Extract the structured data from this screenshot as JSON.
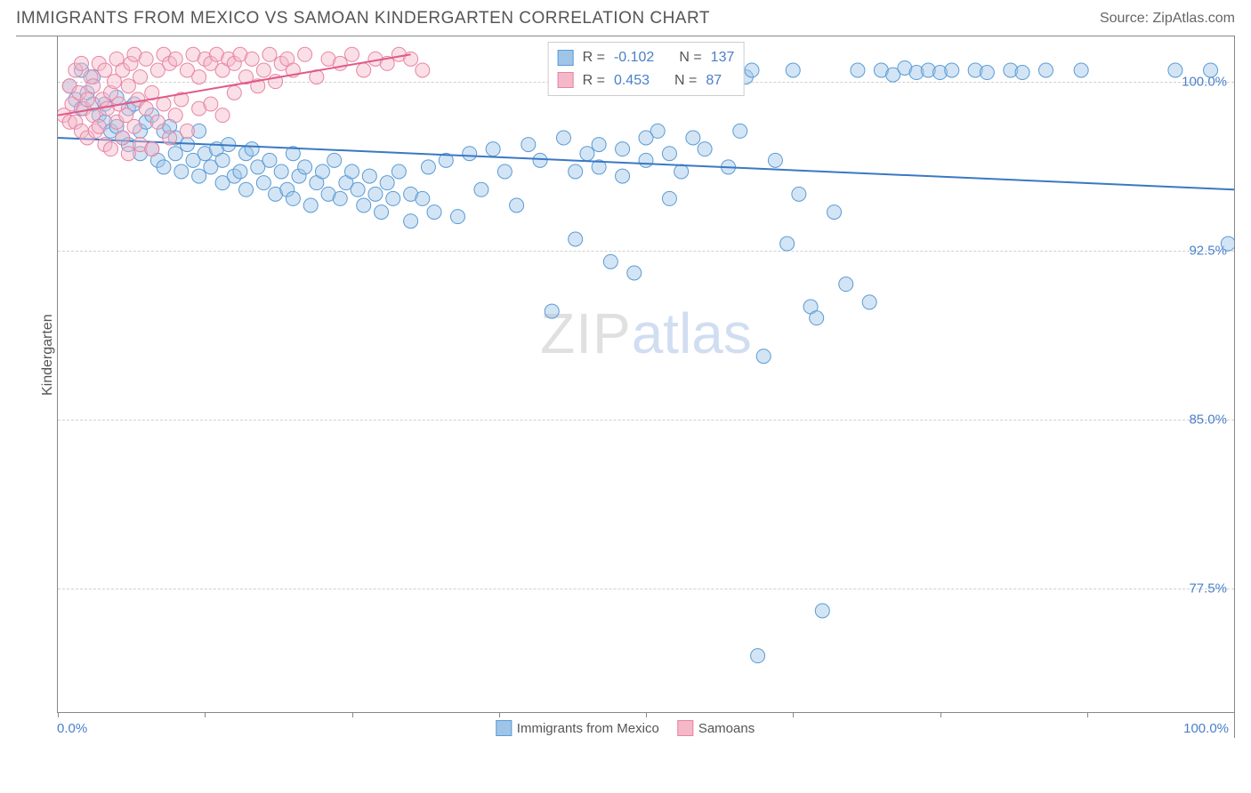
{
  "title": "IMMIGRANTS FROM MEXICO VS SAMOAN KINDERGARTEN CORRELATION CHART",
  "source": "Source: ZipAtlas.com",
  "watermark_zip": "ZIP",
  "watermark_atlas": "atlas",
  "chart": {
    "type": "scatter",
    "y_axis_title": "Kindergarten",
    "x_axis_label_left": "0.0%",
    "x_axis_label_right": "100.0%",
    "xlim": [
      0,
      100
    ],
    "ylim": [
      72,
      102
    ],
    "y_ticks": [
      {
        "value": 100.0,
        "label": "100.0%"
      },
      {
        "value": 92.5,
        "label": "92.5%"
      },
      {
        "value": 85.0,
        "label": "85.0%"
      },
      {
        "value": 77.5,
        "label": "77.5%"
      }
    ],
    "x_tick_positions": [
      0,
      12.5,
      25,
      37.5,
      50,
      62.5,
      75,
      87.5,
      100
    ],
    "grid_color": "#d0d0d0",
    "background_color": "#ffffff",
    "marker_radius": 8,
    "marker_opacity": 0.45,
    "line_width": 2,
    "series": [
      {
        "name": "Immigrants from Mexico",
        "color_fill": "#9ec5e8",
        "color_stroke": "#5b9bd5",
        "trendline_color": "#3b78c4",
        "trendline": {
          "x1": 0,
          "y1": 97.5,
          "x2": 100,
          "y2": 95.2
        },
        "legend_r_label": "R =",
        "legend_r_value": "-0.102",
        "legend_n_label": "N =",
        "legend_n_value": "137",
        "points": [
          [
            1,
            99.8
          ],
          [
            1.5,
            99.2
          ],
          [
            2,
            98.8
          ],
          [
            2,
            100.5
          ],
          [
            2.5,
            99.5
          ],
          [
            3,
            99.0
          ],
          [
            3,
            100.2
          ],
          [
            3.5,
            98.5
          ],
          [
            4,
            99.0
          ],
          [
            4,
            98.2
          ],
          [
            4.5,
            97.8
          ],
          [
            5,
            99.3
          ],
          [
            5,
            98.0
          ],
          [
            5.5,
            97.5
          ],
          [
            6,
            98.8
          ],
          [
            6,
            97.2
          ],
          [
            6.5,
            99.0
          ],
          [
            7,
            97.8
          ],
          [
            7,
            96.8
          ],
          [
            7.5,
            98.2
          ],
          [
            8,
            97.0
          ],
          [
            8,
            98.5
          ],
          [
            8.5,
            96.5
          ],
          [
            9,
            97.8
          ],
          [
            9,
            96.2
          ],
          [
            9.5,
            98.0
          ],
          [
            10,
            96.8
          ],
          [
            10,
            97.5
          ],
          [
            10.5,
            96.0
          ],
          [
            11,
            97.2
          ],
          [
            11.5,
            96.5
          ],
          [
            12,
            97.8
          ],
          [
            12,
            95.8
          ],
          [
            12.5,
            96.8
          ],
          [
            13,
            96.2
          ],
          [
            13.5,
            97.0
          ],
          [
            14,
            95.5
          ],
          [
            14,
            96.5
          ],
          [
            14.5,
            97.2
          ],
          [
            15,
            95.8
          ],
          [
            15.5,
            96.0
          ],
          [
            16,
            96.8
          ],
          [
            16,
            95.2
          ],
          [
            16.5,
            97.0
          ],
          [
            17,
            96.2
          ],
          [
            17.5,
            95.5
          ],
          [
            18,
            96.5
          ],
          [
            18.5,
            95.0
          ],
          [
            19,
            96.0
          ],
          [
            19.5,
            95.2
          ],
          [
            20,
            96.8
          ],
          [
            20,
            94.8
          ],
          [
            20.5,
            95.8
          ],
          [
            21,
            96.2
          ],
          [
            21.5,
            94.5
          ],
          [
            22,
            95.5
          ],
          [
            22.5,
            96.0
          ],
          [
            23,
            95.0
          ],
          [
            23.5,
            96.5
          ],
          [
            24,
            94.8
          ],
          [
            24.5,
            95.5
          ],
          [
            25,
            96.0
          ],
          [
            25.5,
            95.2
          ],
          [
            26,
            94.5
          ],
          [
            26.5,
            95.8
          ],
          [
            27,
            95.0
          ],
          [
            27.5,
            94.2
          ],
          [
            28,
            95.5
          ],
          [
            28.5,
            94.8
          ],
          [
            29,
            96.0
          ],
          [
            30,
            95.0
          ],
          [
            30,
            93.8
          ],
          [
            31,
            94.8
          ],
          [
            31.5,
            96.2
          ],
          [
            32,
            94.2
          ],
          [
            33,
            96.5
          ],
          [
            34,
            94.0
          ],
          [
            35,
            96.8
          ],
          [
            36,
            95.2
          ],
          [
            37,
            97.0
          ],
          [
            38,
            96.0
          ],
          [
            39,
            94.5
          ],
          [
            40,
            97.2
          ],
          [
            41,
            96.5
          ],
          [
            42,
            89.8
          ],
          [
            43,
            97.5
          ],
          [
            44,
            93.0
          ],
          [
            45,
            96.8
          ],
          [
            46,
            96.2
          ],
          [
            47,
            92.0
          ],
          [
            48,
            97.0
          ],
          [
            49,
            91.5
          ],
          [
            50,
            96.5
          ],
          [
            51,
            97.8
          ],
          [
            52,
            94.8
          ],
          [
            53,
            96.0
          ],
          [
            54,
            97.5
          ],
          [
            55,
            97.0
          ],
          [
            56,
            100.5
          ],
          [
            57,
            96.2
          ],
          [
            58,
            97.8
          ],
          [
            58.5,
            100.2
          ],
          [
            59,
            100.5
          ],
          [
            59.5,
            74.5
          ],
          [
            60,
            87.8
          ],
          [
            61,
            96.5
          ],
          [
            62,
            92.8
          ],
          [
            62.5,
            100.5
          ],
          [
            63,
            95.0
          ],
          [
            64,
            90.0
          ],
          [
            64.5,
            89.5
          ],
          [
            65,
            76.5
          ],
          [
            66,
            94.2
          ],
          [
            67,
            91.0
          ],
          [
            68,
            100.5
          ],
          [
            69,
            90.2
          ],
          [
            70,
            100.5
          ],
          [
            71,
            100.3
          ],
          [
            72,
            100.6
          ],
          [
            73,
            100.4
          ],
          [
            74,
            100.5
          ],
          [
            75,
            100.4
          ],
          [
            76,
            100.5
          ],
          [
            78,
            100.5
          ],
          [
            79,
            100.4
          ],
          [
            81,
            100.5
          ],
          [
            82,
            100.4
          ],
          [
            84,
            100.5
          ],
          [
            87,
            100.5
          ],
          [
            95,
            100.5
          ],
          [
            98,
            100.5
          ],
          [
            99.5,
            92.8
          ],
          [
            44,
            96.0
          ],
          [
            46,
            97.2
          ],
          [
            48,
            95.8
          ],
          [
            50,
            97.5
          ],
          [
            52,
            96.8
          ]
        ]
      },
      {
        "name": "Samoans",
        "color_fill": "#f5b8c9",
        "color_stroke": "#e884a5",
        "trendline_color": "#e05a87",
        "trendline": {
          "x1": 0,
          "y1": 98.5,
          "x2": 30,
          "y2": 101.2
        },
        "legend_r_label": "R =",
        "legend_r_value": "0.453",
        "legend_n_label": "N =",
        "legend_n_value": "87",
        "points": [
          [
            0.5,
            98.5
          ],
          [
            1,
            99.8
          ],
          [
            1,
            98.2
          ],
          [
            1.2,
            99.0
          ],
          [
            1.5,
            100.5
          ],
          [
            1.5,
            98.2
          ],
          [
            1.8,
            99.5
          ],
          [
            2,
            97.8
          ],
          [
            2,
            100.8
          ],
          [
            2.2,
            98.8
          ],
          [
            2.5,
            99.2
          ],
          [
            2.5,
            97.5
          ],
          [
            2.8,
            100.2
          ],
          [
            3,
            98.5
          ],
          [
            3,
            99.8
          ],
          [
            3.2,
            97.8
          ],
          [
            3.5,
            100.8
          ],
          [
            3.5,
            98.0
          ],
          [
            3.8,
            99.2
          ],
          [
            4,
            97.2
          ],
          [
            4,
            100.5
          ],
          [
            4.2,
            98.8
          ],
          [
            4.5,
            99.5
          ],
          [
            4.5,
            97.0
          ],
          [
            4.8,
            100.0
          ],
          [
            5,
            98.2
          ],
          [
            5,
            101.0
          ],
          [
            5.2,
            99.0
          ],
          [
            5.5,
            97.5
          ],
          [
            5.5,
            100.5
          ],
          [
            5.8,
            98.5
          ],
          [
            6,
            99.8
          ],
          [
            6,
            96.8
          ],
          [
            6.2,
            100.8
          ],
          [
            6.5,
            98.0
          ],
          [
            6.5,
            101.2
          ],
          [
            6.8,
            99.2
          ],
          [
            7,
            97.2
          ],
          [
            7,
            100.2
          ],
          [
            7.5,
            98.8
          ],
          [
            7.5,
            101.0
          ],
          [
            8,
            99.5
          ],
          [
            8,
            97.0
          ],
          [
            8.5,
            100.5
          ],
          [
            8.5,
            98.2
          ],
          [
            9,
            101.2
          ],
          [
            9,
            99.0
          ],
          [
            9.5,
            97.5
          ],
          [
            9.5,
            100.8
          ],
          [
            10,
            98.5
          ],
          [
            10,
            101.0
          ],
          [
            10.5,
            99.2
          ],
          [
            11,
            100.5
          ],
          [
            11,
            97.8
          ],
          [
            11.5,
            101.2
          ],
          [
            12,
            98.8
          ],
          [
            12,
            100.2
          ],
          [
            12.5,
            101.0
          ],
          [
            13,
            99.0
          ],
          [
            13,
            100.8
          ],
          [
            13.5,
            101.2
          ],
          [
            14,
            98.5
          ],
          [
            14,
            100.5
          ],
          [
            14.5,
            101.0
          ],
          [
            15,
            99.5
          ],
          [
            15,
            100.8
          ],
          [
            15.5,
            101.2
          ],
          [
            16,
            100.2
          ],
          [
            16.5,
            101.0
          ],
          [
            17,
            99.8
          ],
          [
            17.5,
            100.5
          ],
          [
            18,
            101.2
          ],
          [
            18.5,
            100.0
          ],
          [
            19,
            100.8
          ],
          [
            19.5,
            101.0
          ],
          [
            20,
            100.5
          ],
          [
            21,
            101.2
          ],
          [
            22,
            100.2
          ],
          [
            23,
            101.0
          ],
          [
            24,
            100.8
          ],
          [
            25,
            101.2
          ],
          [
            26,
            100.5
          ],
          [
            27,
            101.0
          ],
          [
            28,
            100.8
          ],
          [
            29,
            101.2
          ],
          [
            30,
            101.0
          ],
          [
            31,
            100.5
          ]
        ]
      }
    ]
  },
  "bottom_legend": {
    "series1_label": "Immigrants from Mexico",
    "series2_label": "Samoans"
  }
}
